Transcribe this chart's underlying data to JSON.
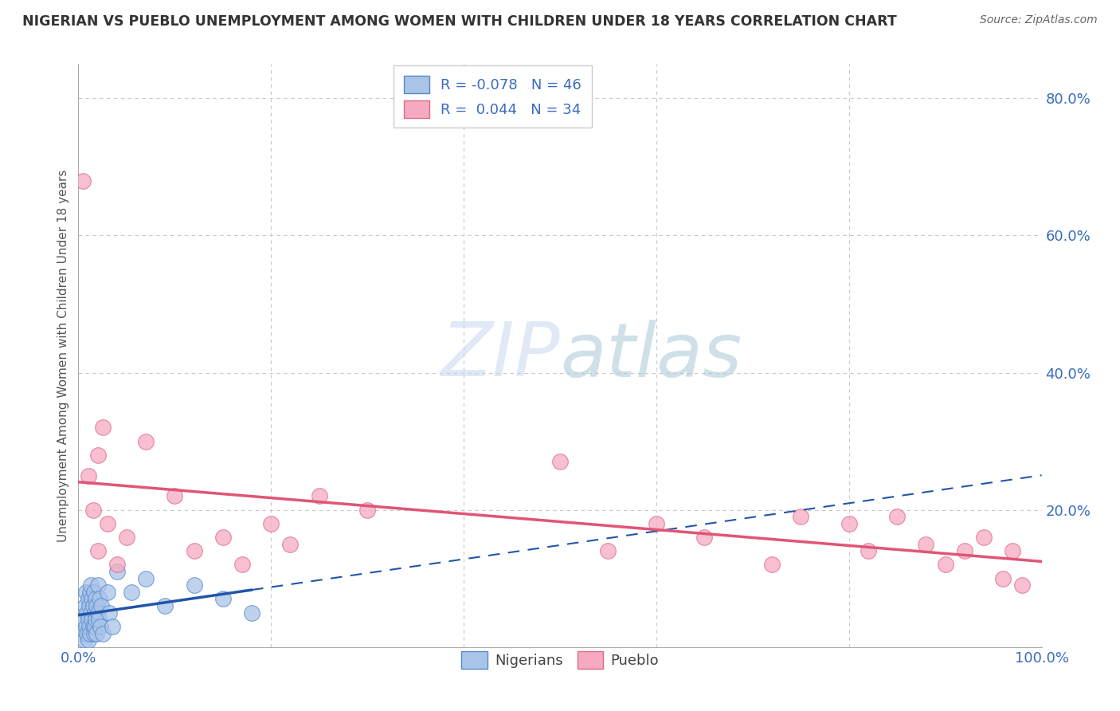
{
  "title": "NIGERIAN VS PUEBLO UNEMPLOYMENT AMONG WOMEN WITH CHILDREN UNDER 18 YEARS CORRELATION CHART",
  "source": "Source: ZipAtlas.com",
  "ylabel": "Unemployment Among Women with Children Under 18 years",
  "xlim": [
    0,
    1.0
  ],
  "ylim": [
    0,
    0.85
  ],
  "xtick_positions": [
    0.0,
    0.2,
    0.4,
    0.6,
    0.8,
    1.0
  ],
  "xticklabels": [
    "0.0%",
    "",
    "",
    "",
    "",
    "100.0%"
  ],
  "ytick_positions": [
    0.0,
    0.2,
    0.4,
    0.6,
    0.8
  ],
  "yticklabels": [
    "",
    "20.0%",
    "40.0%",
    "60.0%",
    "80.0%"
  ],
  "background_color": "#ffffff",
  "grid_color": "#c8c8c8",
  "nigerians_color": "#aac4e8",
  "pueblo_color": "#f5aabf",
  "nigerians_edge_color": "#5588cc",
  "pueblo_edge_color": "#e06888",
  "trend_nigerian_color": "#2255aa",
  "trend_pueblo_color": "#e05575",
  "R_nigerian": -0.078,
  "N_nigerian": 46,
  "R_pueblo": 0.044,
  "N_pueblo": 34,
  "nigerians_x": [
    0.003,
    0.005,
    0.006,
    0.007,
    0.008,
    0.008,
    0.009,
    0.009,
    0.01,
    0.01,
    0.01,
    0.011,
    0.011,
    0.012,
    0.012,
    0.013,
    0.013,
    0.014,
    0.014,
    0.015,
    0.015,
    0.016,
    0.016,
    0.017,
    0.017,
    0.018,
    0.018,
    0.019,
    0.019,
    0.02,
    0.02,
    0.021,
    0.022,
    0.023,
    0.024,
    0.025,
    0.03,
    0.032,
    0.035,
    0.04,
    0.055,
    0.07,
    0.09,
    0.12,
    0.15,
    0.18
  ],
  "nigerians_y": [
    0.02,
    0.04,
    0.01,
    0.06,
    0.03,
    0.08,
    0.02,
    0.05,
    0.07,
    0.04,
    0.01,
    0.06,
    0.03,
    0.08,
    0.02,
    0.05,
    0.09,
    0.04,
    0.07,
    0.03,
    0.06,
    0.02,
    0.08,
    0.05,
    0.03,
    0.07,
    0.04,
    0.06,
    0.02,
    0.09,
    0.05,
    0.04,
    0.07,
    0.03,
    0.06,
    0.02,
    0.08,
    0.05,
    0.03,
    0.11,
    0.08,
    0.1,
    0.06,
    0.09,
    0.07,
    0.05
  ],
  "pueblo_x": [
    0.005,
    0.01,
    0.015,
    0.02,
    0.02,
    0.025,
    0.03,
    0.04,
    0.05,
    0.07,
    0.1,
    0.12,
    0.15,
    0.17,
    0.2,
    0.22,
    0.25,
    0.3,
    0.5,
    0.55,
    0.6,
    0.65,
    0.72,
    0.75,
    0.8,
    0.82,
    0.85,
    0.88,
    0.9,
    0.92,
    0.94,
    0.96,
    0.97,
    0.98
  ],
  "pueblo_y": [
    0.68,
    0.25,
    0.2,
    0.28,
    0.14,
    0.32,
    0.18,
    0.12,
    0.16,
    0.3,
    0.22,
    0.14,
    0.16,
    0.12,
    0.18,
    0.15,
    0.22,
    0.2,
    0.27,
    0.14,
    0.18,
    0.16,
    0.12,
    0.19,
    0.18,
    0.14,
    0.19,
    0.15,
    0.12,
    0.14,
    0.16,
    0.1,
    0.14,
    0.09
  ]
}
